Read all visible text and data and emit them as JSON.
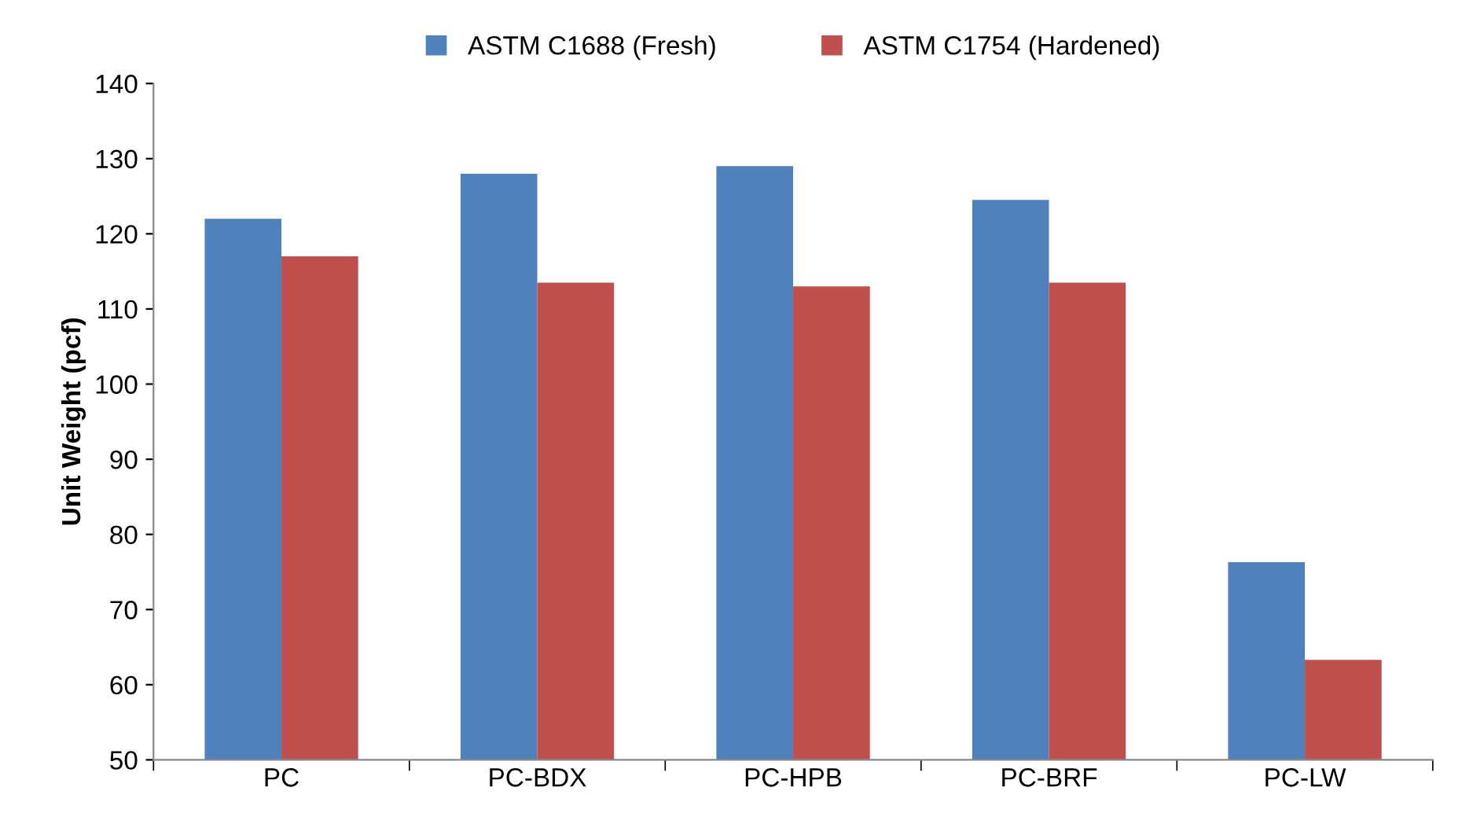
{
  "chart_data": {
    "type": "bar",
    "ylabel": "Unit Weight (pcf)",
    "categories": [
      "PC",
      "PC-BDX",
      "PC-HPB",
      "PC-BRF",
      "PC-LW"
    ],
    "series": [
      {
        "name": "ASTM C1688 (Fresh)",
        "color": "#4f81bd",
        "values": [
          122,
          128,
          129,
          124.5,
          76.3
        ]
      },
      {
        "name": "ASTM C1754 (Hardened)",
        "color": "#c0504d",
        "values": [
          117,
          113.5,
          113,
          113.5,
          63.3
        ]
      }
    ],
    "ylim": [
      50,
      140
    ],
    "yticks": [
      50,
      60,
      70,
      80,
      90,
      100,
      110,
      120,
      130,
      140
    ],
    "grid": false,
    "legend": "top"
  }
}
